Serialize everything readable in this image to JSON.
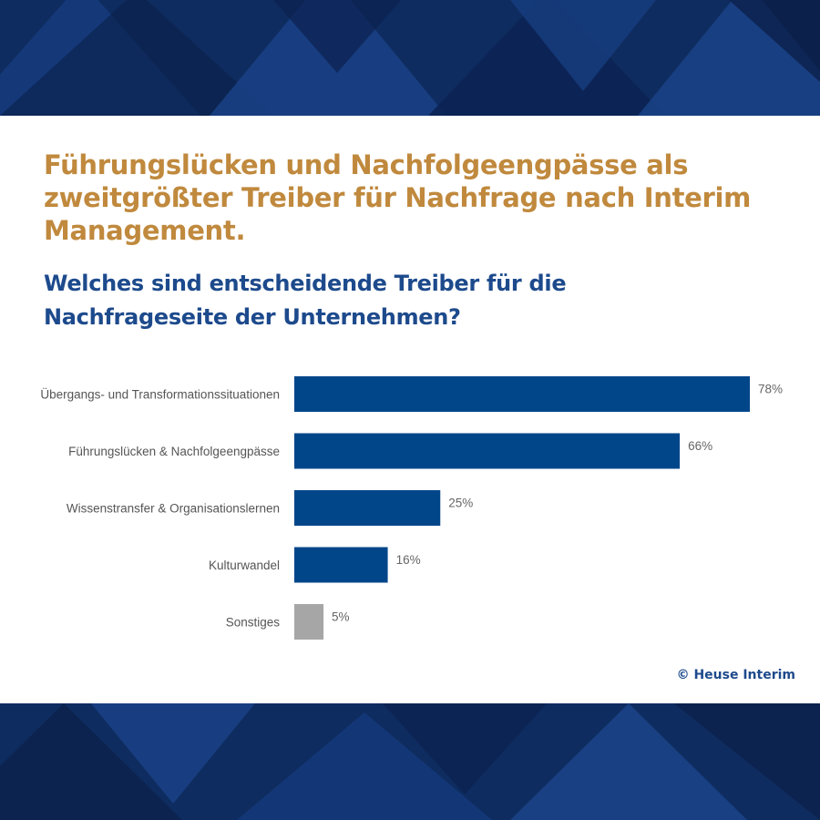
{
  "headline": "Führungslücken und Nachfolgeengpässe als zweitgrößter Treiber für Nachfrage nach Interim Management.",
  "question": "Welches sind entscheidende Treiber für die Nachfrageseite der Unternehmen?",
  "copyright": "© Heuse Interim",
  "colors": {
    "primary_bar": "#02468a",
    "other_bar": "#a6a6a6",
    "headline": "#c0893d",
    "question": "#1d4a8c"
  },
  "chart_data": {
    "type": "bar",
    "orientation": "horizontal",
    "title": "Welches sind entscheidende Treiber für die Nachfrageseite der Unternehmen?",
    "xlabel": "",
    "ylabel": "",
    "xlim": [
      0,
      78
    ],
    "grid": false,
    "categories": [
      "Übergangs- und Transformationssituationen",
      "Führungslücken & Nachfolgeengpässe",
      "Wissenstransfer & Organisationslernen",
      "Kulturwandel",
      "Sonstiges"
    ],
    "values": [
      78,
      66,
      25,
      16,
      5
    ],
    "value_labels": [
      "78%",
      "66%",
      "25%",
      "16%",
      "5%"
    ],
    "bar_colors": [
      "#02468a",
      "#02468a",
      "#02468a",
      "#02468a",
      "#a6a6a6"
    ]
  }
}
